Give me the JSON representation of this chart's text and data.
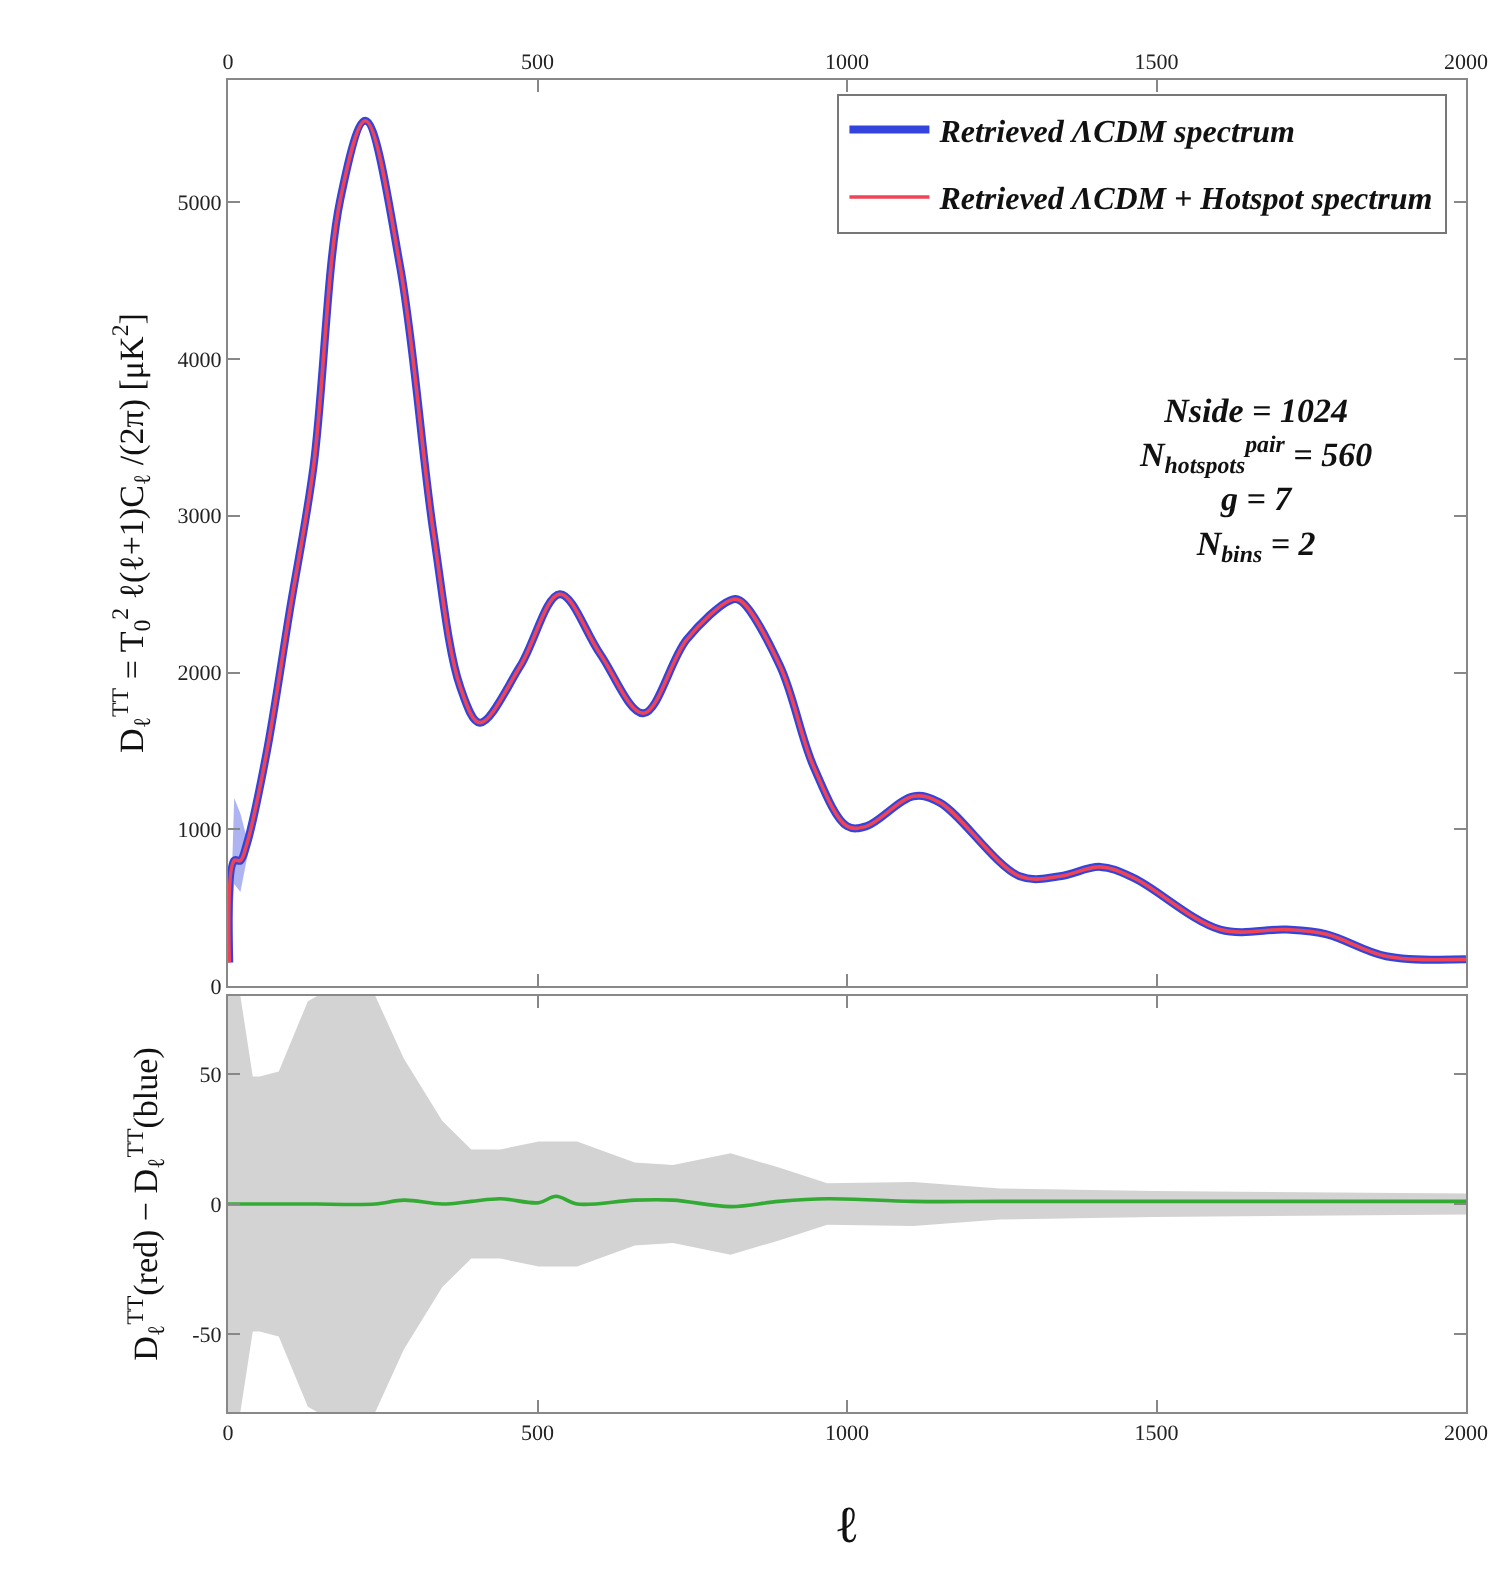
{
  "chart_data": [
    {
      "type": "line",
      "ylabel": "D$_{ℓ}$$^{TT}$ = T$_{0}$$^{2}$ ℓ(ℓ+1)C$_{ℓ}$ /(2π) [μK$^{2}$]",
      "x": [
        2,
        10,
        20,
        30,
        62,
        100,
        138,
        181,
        222,
        278,
        332,
        375,
        407,
        472,
        536,
        601,
        671,
        741,
        811,
        827,
        892,
        946,
        1000,
        1032,
        1107,
        1150,
        1279,
        1344,
        1409,
        1463,
        1603,
        1710,
        1775,
        1871,
        2000
      ],
      "series": [
        {
          "name": "Retrieved ΛCDM spectrum",
          "color": "#3344dd",
          "values": [
            150,
            800,
            800,
            900,
            1480,
            2400,
            3310,
            5010,
            5520,
            4590,
            2890,
            1910,
            1680,
            2040,
            2500,
            2120,
            1740,
            2210,
            2460,
            2460,
            2040,
            1400,
            1020,
            1020,
            1210,
            1170,
            700,
            700,
            760,
            690,
            360,
            360,
            330,
            190,
            170
          ],
          "lower": [
            150,
            650,
            600,
            800,
            1480,
            2400,
            3310,
            5010,
            5520,
            4590,
            2890,
            1910,
            1680,
            2040,
            2500,
            2120,
            1740,
            2210,
            2460,
            2460,
            2040,
            1400,
            1020,
            1020,
            1210,
            1170,
            700,
            700,
            760,
            690,
            360,
            360,
            330,
            190,
            170
          ],
          "upper": [
            150,
            1200,
            1100,
            950,
            1480,
            2400,
            3310,
            5010,
            5520,
            4590,
            2890,
            1910,
            1680,
            2040,
            2500,
            2120,
            1740,
            2210,
            2460,
            2460,
            2040,
            1400,
            1020,
            1020,
            1210,
            1170,
            700,
            700,
            760,
            690,
            360,
            360,
            330,
            190,
            170
          ]
        },
        {
          "name": "Retrieved ΛCDM + Hotspot spectrum",
          "color": "#ee4455",
          "values": [
            150,
            800,
            800,
            900,
            1480,
            2400,
            3310,
            5010,
            5520,
            4590,
            2890,
            1910,
            1680,
            2040,
            2500,
            2120,
            1740,
            2210,
            2460,
            2460,
            2040,
            1400,
            1020,
            1020,
            1210,
            1170,
            700,
            700,
            760,
            690,
            360,
            360,
            330,
            190,
            170
          ]
        }
      ],
      "xlim": [
        0,
        2000
      ],
      "xticks": [
        0,
        500,
        1000,
        1500,
        2000
      ],
      "ylim": [
        0,
        5780
      ],
      "yticks": [
        0,
        1000,
        2000,
        3000,
        4000,
        5000
      ],
      "legend": "top right",
      "grid": false,
      "annotations": [
        "Nside = 1024",
        "N$_{hotspots}$$^{pair}$ = 560",
        "g = 7",
        "N$_{bins}$ = 2"
      ]
    },
    {
      "type": "line",
      "ylabel": "D$_{ℓ}$$^{TT}$(red) − D$_{ℓ}$$^{TT}$(blue)",
      "xlabel": "ℓ",
      "series": [
        {
          "color": "#33aa33",
          "x": [
            0,
            20,
            40,
            51,
            82,
            129,
            144,
            238,
            284,
            346,
            393,
            440,
            502,
            530,
            564,
            657,
            719,
            812,
            890,
            968,
            1107,
            1247,
            1496,
            2000
          ],
          "values": [
            0,
            0,
            0,
            0,
            0,
            0,
            0,
            0,
            1.5,
            0,
            1,
            2,
            0.5,
            3,
            0,
            1.5,
            1.5,
            -1,
            1,
            2,
            1,
            1,
            1,
            1
          ],
          "lower": [
            -80,
            -80,
            -49,
            -49,
            -51,
            -78,
            -80,
            -80,
            -56,
            -32,
            -21,
            -21,
            -24,
            -24,
            -24,
            -16,
            -15,
            -19.5,
            -14,
            -8,
            -8.5,
            -6,
            -5,
            -4
          ],
          "upper": [
            80,
            80,
            49,
            49,
            51,
            78,
            80,
            80,
            56,
            32,
            21,
            21,
            24,
            24,
            24,
            16,
            15,
            19.5,
            14,
            8,
            8.5,
            6,
            5,
            4
          ]
        }
      ],
      "xlim": [
        0,
        2000
      ],
      "xticks": [
        0,
        500,
        1000,
        1500,
        2000
      ],
      "ylim": [
        -80,
        80
      ],
      "yticks": [
        -50,
        0,
        50
      ],
      "grid": false
    }
  ]
}
